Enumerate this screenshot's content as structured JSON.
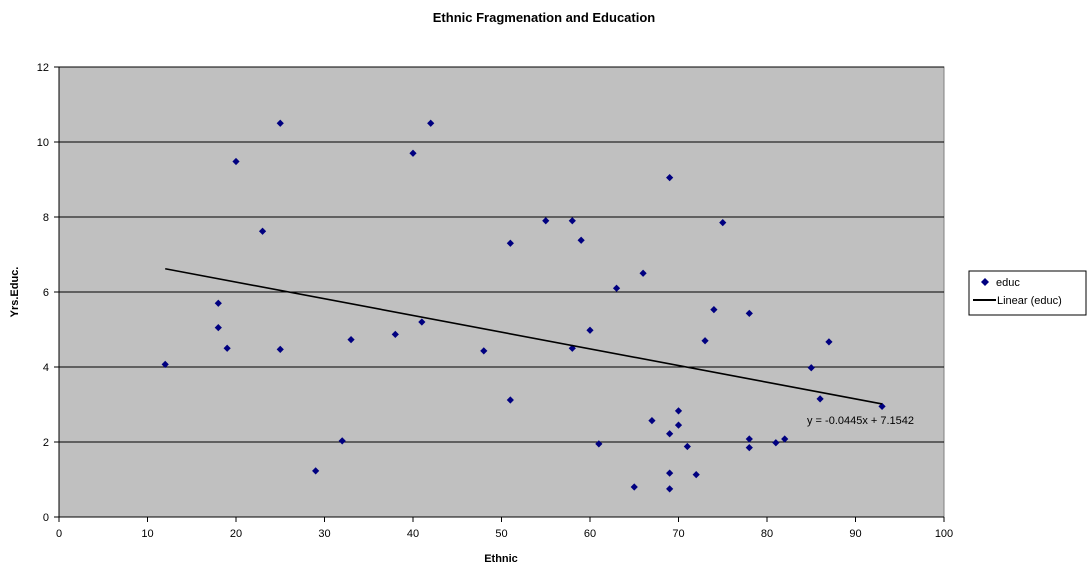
{
  "chart_data": {
    "type": "scatter",
    "title": "Ethnic Fragmenation and Education",
    "xlabel": "Ethnic",
    "ylabel": "Yrs.Educ.",
    "xlim": [
      0,
      100
    ],
    "ylim": [
      0,
      12
    ],
    "x_ticks": [
      0,
      10,
      20,
      30,
      40,
      50,
      60,
      70,
      80,
      90,
      100
    ],
    "y_ticks": [
      0,
      2,
      4,
      6,
      8,
      10,
      12
    ],
    "grid": "horizontal",
    "plot_background": "#c0c0c0",
    "legend_position": "right",
    "series": [
      {
        "name": "educ",
        "marker": "diamond",
        "color": "#000080",
        "points": [
          [
            12,
            4.07
          ],
          [
            18,
            5.7
          ],
          [
            18,
            5.05
          ],
          [
            19,
            4.5
          ],
          [
            20,
            9.48
          ],
          [
            23,
            7.62
          ],
          [
            25,
            10.5
          ],
          [
            25,
            4.47
          ],
          [
            29,
            1.23
          ],
          [
            32,
            2.03
          ],
          [
            33,
            4.73
          ],
          [
            38,
            4.87
          ],
          [
            40,
            9.7
          ],
          [
            41,
            5.2
          ],
          [
            42,
            10.5
          ],
          [
            48,
            4.43
          ],
          [
            51,
            7.3
          ],
          [
            51,
            3.12
          ],
          [
            55,
            7.9
          ],
          [
            58,
            7.9
          ],
          [
            58,
            4.5
          ],
          [
            59,
            7.38
          ],
          [
            60,
            4.98
          ],
          [
            61,
            1.95
          ],
          [
            63,
            6.1
          ],
          [
            65,
            0.8
          ],
          [
            66,
            6.5
          ],
          [
            67,
            2.57
          ],
          [
            69,
            9.05
          ],
          [
            69,
            2.22
          ],
          [
            69,
            1.17
          ],
          [
            69,
            0.75
          ],
          [
            70,
            2.83
          ],
          [
            70,
            2.45
          ],
          [
            71,
            1.88
          ],
          [
            72,
            1.13
          ],
          [
            73,
            4.7
          ],
          [
            74,
            5.53
          ],
          [
            75,
            7.85
          ],
          [
            78,
            5.43
          ],
          [
            78,
            2.08
          ],
          [
            78,
            1.85
          ],
          [
            81,
            1.98
          ],
          [
            82,
            2.08
          ],
          [
            85,
            3.98
          ],
          [
            86,
            3.15
          ],
          [
            87,
            4.67
          ],
          [
            93,
            2.95
          ]
        ]
      },
      {
        "name": "Linear (educ)",
        "type": "trendline",
        "slope": -0.0445,
        "intercept": 7.1542,
        "x_range": [
          12,
          93
        ],
        "color": "#000000"
      }
    ],
    "annotations": [
      {
        "text": "y = -0.0445x + 7.1542"
      }
    ]
  }
}
